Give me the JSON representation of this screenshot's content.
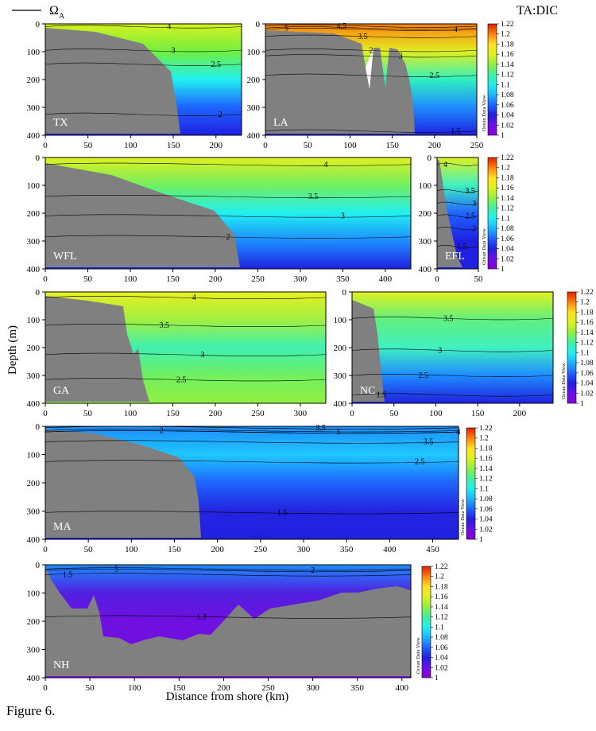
{
  "figure_label": "Figure 6.",
  "legend": {
    "line_label": "Ω",
    "line_subscript": "A",
    "color_label": "TA:DIC",
    "watermark": "Ocean Data View"
  },
  "colorbar_ticks": [
    "1.22",
    "1.2",
    "1.18",
    "1.16",
    "1.14",
    "1.12",
    "1.1",
    "1.08",
    "1.06",
    "1.04",
    "1.02",
    "1"
  ],
  "colors": {
    "land": "#808080",
    "colorbar_stops": [
      "#8a00d4",
      "#6a10e8",
      "#2020e0",
      "#1e64ff",
      "#1eb4ff",
      "#20f0f0",
      "#40f0a0",
      "#90f040",
      "#e0f020",
      "#ffe020",
      "#ff8010",
      "#e02000"
    ]
  },
  "chart_data": {
    "type": "heatmap",
    "xlabel": "Distance from shore (km)",
    "ylabel": "Depth (m)",
    "ylim": [
      400,
      0
    ],
    "colorbar_range": [
      1.0,
      1.22
    ],
    "panels": [
      {
        "label": "TX",
        "xlim": [
          0,
          230
        ],
        "xticks": [
          0,
          50,
          100,
          150,
          200
        ],
        "contours": [
          {
            "value": "4",
            "x": 145,
            "y": 10
          },
          {
            "value": "3",
            "x": 150,
            "y": 95
          },
          {
            "value": "2.5",
            "x": 200,
            "y": 145
          },
          {
            "value": "2",
            "x": 205,
            "y": 325
          }
        ]
      },
      {
        "label": "LA",
        "xlim": [
          0,
          250
        ],
        "xticks": [
          0,
          50,
          100,
          150,
          200,
          250
        ],
        "contours": [
          {
            "value": "5",
            "x": 25,
            "y": 15
          },
          {
            "value": "4.5",
            "x": 90,
            "y": 8
          },
          {
            "value": "3.5",
            "x": 115,
            "y": 45
          },
          {
            "value": "4",
            "x": 225,
            "y": 20
          },
          {
            "value": "2",
            "x": 125,
            "y": 95
          },
          {
            "value": "3",
            "x": 160,
            "y": 115
          },
          {
            "value": "2.5",
            "x": 200,
            "y": 185
          },
          {
            "value": "1.5",
            "x": 225,
            "y": 385
          }
        ]
      },
      {
        "label": "WFL",
        "xlim": [
          0,
          430
        ],
        "xticks": [
          0,
          50,
          100,
          150,
          200,
          250,
          300,
          350,
          400
        ],
        "contours": [
          {
            "value": "4",
            "x": 330,
            "y": 25
          },
          {
            "value": "3.5",
            "x": 315,
            "y": 140
          },
          {
            "value": "3",
            "x": 350,
            "y": 210
          },
          {
            "value": "2",
            "x": 215,
            "y": 285
          }
        ]
      },
      {
        "label": "EFL",
        "xlim": [
          0,
          50
        ],
        "xticks": [
          0,
          50
        ],
        "contours": [
          {
            "value": "4",
            "x": 10,
            "y": 25
          },
          {
            "value": "3.5",
            "x": 40,
            "y": 120
          },
          {
            "value": "3",
            "x": 45,
            "y": 165
          },
          {
            "value": "2.5",
            "x": 40,
            "y": 210
          },
          {
            "value": "2",
            "x": 45,
            "y": 255
          },
          {
            "value": "1.5",
            "x": 30,
            "y": 320
          }
        ]
      },
      {
        "label": "GA",
        "xlim": [
          0,
          330
        ],
        "xticks": [
          0,
          50,
          100,
          150,
          200,
          250,
          300
        ],
        "contours": [
          {
            "value": "4",
            "x": 175,
            "y": 20
          },
          {
            "value": "3.5",
            "x": 140,
            "y": 120
          },
          {
            "value": "3",
            "x": 185,
            "y": 225
          },
          {
            "value": "2.5",
            "x": 160,
            "y": 315
          }
        ]
      },
      {
        "label": "NC",
        "xlim": [
          0,
          240
        ],
        "xticks": [
          0,
          50,
          100,
          150,
          200
        ],
        "contours": [
          {
            "value": "3.5",
            "x": 115,
            "y": 95
          },
          {
            "value": "3",
            "x": 105,
            "y": 210
          },
          {
            "value": "2.5",
            "x": 85,
            "y": 300
          },
          {
            "value": "1.5",
            "x": 35,
            "y": 370
          }
        ]
      },
      {
        "label": "MA",
        "xlim": [
          0,
          480
        ],
        "xticks": [
          0,
          50,
          100,
          150,
          200,
          250,
          300,
          350,
          400,
          450
        ],
        "contours": [
          {
            "value": "2",
            "x": 135,
            "y": 15
          },
          {
            "value": "3.5",
            "x": 320,
            "y": 5
          },
          {
            "value": "3",
            "x": 340,
            "y": 20
          },
          {
            "value": "3.5",
            "x": 445,
            "y": 55
          },
          {
            "value": "4",
            "x": 480,
            "y": 20
          },
          {
            "value": "2.5",
            "x": 435,
            "y": 125
          },
          {
            "value": "1.5",
            "x": 275,
            "y": 305
          }
        ]
      },
      {
        "label": "NH",
        "xlim": [
          0,
          410
        ],
        "xticks": [
          0,
          50,
          100,
          150,
          200,
          250,
          300,
          350,
          400
        ],
        "contours": [
          {
            "value": "1.5",
            "x": 25,
            "y": 35
          },
          {
            "value": "5",
            "x": 80,
            "y": 15
          },
          {
            "value": "2",
            "x": 300,
            "y": 20
          },
          {
            "value": "1.3",
            "x": 175,
            "y": 185
          }
        ]
      }
    ]
  }
}
